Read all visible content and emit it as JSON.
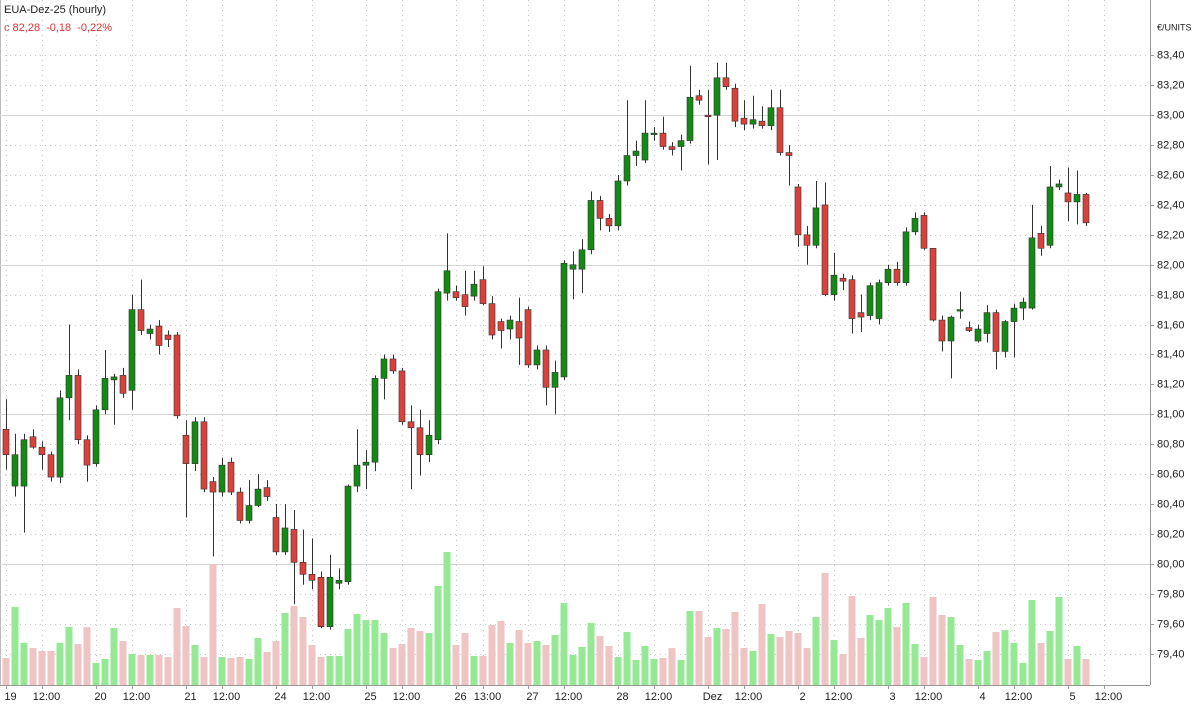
{
  "chart_data": {
    "type": "candlestick",
    "title": "EUA-Dez-25 (hourly)",
    "close_label": "c 82,28",
    "change": "-0,18",
    "change_pct": "-0,22%",
    "y_axis_label": "€/UNITS",
    "categories": [
      "19",
      null,
      null,
      null,
      "12:00",
      null,
      null,
      null,
      null,
      null,
      "20",
      null,
      null,
      null,
      "12:00",
      null,
      null,
      null,
      null,
      null,
      "21",
      null,
      null,
      null,
      "12:00",
      null,
      null,
      null,
      null,
      null,
      "24",
      null,
      null,
      null,
      "12:00",
      null,
      null,
      null,
      null,
      null,
      "25",
      null,
      null,
      null,
      "12:00",
      null,
      null,
      null,
      null,
      null,
      "26",
      null,
      null,
      "13:00",
      null,
      null,
      null,
      null,
      "27",
      null,
      null,
      null,
      "12:00",
      null,
      null,
      null,
      null,
      null,
      "28",
      null,
      null,
      null,
      "12:00",
      null,
      null,
      null,
      null,
      null,
      "Dez",
      null,
      null,
      null,
      "12:00",
      null,
      null,
      null,
      null,
      null,
      "2",
      null,
      null,
      null,
      "12:00",
      null,
      null,
      null,
      null,
      null,
      "3",
      null,
      null,
      null,
      "12:00",
      null,
      null,
      null,
      null,
      null,
      "4",
      null,
      null,
      null,
      "12:00",
      null,
      null,
      null,
      null,
      null,
      "5",
      null,
      null,
      null,
      "12:00"
    ],
    "open": [
      80.9,
      80.52,
      80.52,
      80.85,
      80.78,
      80.73,
      80.58,
      81.11,
      81.26,
      80.83,
      80.67,
      81.03,
      81.23,
      81.26,
      81.16,
      81.7,
      81.54,
      81.59,
      81.53,
      81.53,
      80.86,
      80.67,
      80.95,
      80.55,
      80.48,
      80.68,
      80.48,
      80.29,
      80.39,
      80.51,
      80.31,
      80.08,
      80.23,
      80.01,
      79.93,
      79.91,
      79.58,
      79.87,
      79.88,
      80.52,
      80.66,
      80.68,
      81.24,
      81.37,
      81.29,
      80.95,
      80.91,
      80.73,
      80.83,
      81.81,
      81.82,
      81.8,
      81.79,
      81.9,
      81.74,
      81.62,
      81.57,
      81.62,
      81.7,
      81.33,
      81.43,
      81.18,
      81.25,
      81.97,
      81.97,
      82.1,
      82.43,
      82.31,
      82.26,
      82.56,
      82.73,
      82.7,
      82.87,
      82.88,
      82.79,
      82.79,
      82.83,
      83.13,
      83.0,
      83.0,
      83.25,
      83.18,
      82.98,
      82.94,
      82.96,
      82.93,
      83.05,
      82.75,
      82.52,
      82.2,
      82.13,
      82.4,
      81.8,
      81.91,
      81.9,
      81.68,
      81.66,
      81.64,
      81.88,
      81.97,
      81.88,
      82.22,
      82.33,
      82.11,
      81.63,
      81.49,
      81.69,
      81.58,
      81.49,
      81.54,
      81.68,
      81.42,
      81.62,
      81.71,
      81.71,
      82.21,
      82.13,
      82.52,
      82.48,
      82.42,
      82.47,
      null,
      null
    ],
    "high": [
      81.1,
      80.87,
      80.87,
      80.9,
      80.82,
      80.75,
      81.16,
      81.6,
      81.3,
      80.86,
      81.06,
      81.43,
      81.27,
      81.31,
      81.8,
      81.9,
      81.6,
      81.63,
      81.56,
      81.55,
      80.96,
      80.98,
      80.98,
      80.58,
      80.71,
      80.71,
      80.51,
      80.56,
      80.6,
      80.56,
      80.4,
      80.4,
      80.36,
      80.23,
      80.17,
      79.95,
      80.06,
      79.97,
      80.53,
      80.9,
      80.76,
      81.26,
      81.4,
      81.4,
      81.31,
      81.06,
      81.03,
      80.96,
      81.84,
      82.21,
      81.86,
      81.96,
      81.96,
      81.99,
      81.79,
      81.64,
      81.66,
      81.78,
      81.72,
      81.46,
      81.46,
      81.36,
      82.03,
      82.09,
      82.17,
      82.49,
      82.46,
      82.34,
      82.6,
      83.1,
      82.83,
      83.1,
      82.92,
      82.99,
      82.82,
      82.87,
      83.33,
      83.17,
      83.17,
      83.35,
      83.35,
      83.21,
      83.1,
      83.13,
      83.06,
      83.17,
      83.17,
      82.8,
      82.54,
      82.26,
      82.56,
      82.55,
      82.08,
      81.94,
      81.93,
      81.8,
      81.88,
      81.9,
      82.0,
      82.02,
      82.25,
      82.35,
      82.35,
      82.11,
      81.66,
      81.66,
      81.82,
      81.62,
      81.6,
      81.73,
      81.7,
      81.63,
      81.74,
      81.78,
      82.4,
      82.26,
      82.66,
      82.57,
      82.65,
      82.63,
      82.48,
      null,
      null
    ],
    "low": [
      80.63,
      80.45,
      80.21,
      80.77,
      80.63,
      80.55,
      80.54,
      80.96,
      80.8,
      80.55,
      80.65,
      81.0,
      80.93,
      81.11,
      81.03,
      81.53,
      81.5,
      81.4,
      81.45,
      80.97,
      80.31,
      80.62,
      80.48,
      80.05,
      80.45,
      80.46,
      80.27,
      80.27,
      80.38,
      80.42,
      80.06,
      80.06,
      79.73,
      79.86,
      79.83,
      79.57,
      79.56,
      79.83,
      79.86,
      80.48,
      80.5,
      80.62,
      81.1,
      81.27,
      80.93,
      80.5,
      80.59,
      80.68,
      80.8,
      81.76,
      81.76,
      81.66,
      81.76,
      81.73,
      81.5,
      81.44,
      81.5,
      81.33,
      81.31,
      81.3,
      81.06,
      81.0,
      81.23,
      81.77,
      81.81,
      82.07,
      82.23,
      82.22,
      82.23,
      82.53,
      82.66,
      82.68,
      82.83,
      82.77,
      82.73,
      82.63,
      82.81,
      83.07,
      82.67,
      82.7,
      83.17,
      82.92,
      82.9,
      82.91,
      82.91,
      82.9,
      82.73,
      82.53,
      82.12,
      82.0,
      82.11,
      81.79,
      81.76,
      81.83,
      81.54,
      81.55,
      81.63,
      81.6,
      81.86,
      81.86,
      81.86,
      82.2,
      82.1,
      81.62,
      81.42,
      81.24,
      81.64,
      81.55,
      81.48,
      81.48,
      81.3,
      81.38,
      81.38,
      81.63,
      81.7,
      82.06,
      82.11,
      82.5,
      82.29,
      82.27,
      82.26,
      null,
      null
    ],
    "close": [
      80.73,
      80.73,
      80.83,
      80.78,
      80.73,
      80.58,
      81.11,
      81.26,
      80.83,
      80.66,
      81.03,
      81.24,
      81.25,
      81.14,
      81.7,
      81.56,
      81.57,
      81.46,
      81.5,
      80.99,
      80.67,
      80.95,
      80.5,
      80.48,
      80.66,
      80.48,
      80.29,
      80.39,
      80.5,
      80.45,
      80.08,
      80.24,
      80.01,
      79.93,
      79.89,
      79.58,
      79.91,
      79.89,
      80.52,
      80.66,
      80.68,
      81.24,
      81.37,
      81.29,
      80.95,
      80.91,
      80.73,
      80.86,
      81.82,
      81.96,
      81.78,
      81.72,
      81.87,
      81.74,
      81.53,
      81.56,
      81.63,
      81.51,
      81.33,
      81.43,
      81.18,
      81.28,
      82.01,
      82.0,
      82.1,
      82.43,
      82.31,
      82.26,
      82.56,
      82.73,
      82.76,
      82.88,
      82.88,
      82.79,
      82.77,
      82.83,
      83.12,
      83.1,
      82.99,
      83.25,
      83.19,
      82.96,
      82.94,
      82.97,
      82.93,
      83.05,
      82.75,
      82.73,
      82.2,
      82.13,
      82.38,
      81.8,
      81.93,
      81.89,
      81.64,
      81.65,
      81.86,
      81.88,
      81.97,
      81.88,
      82.22,
      82.31,
      82.11,
      81.63,
      81.49,
      81.65,
      81.7,
      81.56,
      81.57,
      81.68,
      81.42,
      81.62,
      81.71,
      81.75,
      82.18,
      82.11,
      82.52,
      82.54,
      82.42,
      82.47,
      82.28,
      null,
      null
    ],
    "volume": [
      27,
      78,
      42,
      37,
      34,
      34,
      42,
      58,
      41,
      58,
      22,
      26,
      57,
      44,
      31,
      30,
      30,
      30,
      28,
      77,
      59,
      40,
      28,
      121,
      28,
      27,
      28,
      26,
      47,
      33,
      44,
      72,
      79,
      68,
      40,
      28,
      29,
      29,
      56,
      71,
      65,
      65,
      52,
      37,
      41,
      57,
      54,
      52,
      99,
      133,
      40,
      52,
      29,
      29,
      60,
      64,
      42,
      55,
      42,
      44,
      40,
      50,
      82,
      30,
      38,
      62,
      49,
      39,
      28,
      53,
      25,
      39,
      26,
      27,
      37,
      25,
      74,
      74,
      48,
      57,
      56,
      73,
      37,
      34,
      81,
      51,
      48,
      54,
      52,
      37,
      68,
      112,
      45,
      31,
      89,
      47,
      70,
      65,
      77,
      58,
      82,
      41,
      28,
      88,
      70,
      68,
      40,
      26,
      25,
      34,
      53,
      55,
      42,
      22,
      85,
      42,
      54,
      88,
      26,
      39,
      26,
      null,
      null
    ],
    "up_color": "#138a13",
    "down_color": "#d8423a",
    "volume_up_color": "#95e995",
    "volume_down_color": "#efc4c4",
    "ylim": [
      79.19,
      83.77
    ],
    "yticks": [
      {
        "value": 79.4,
        "label": "79,40"
      },
      {
        "value": 79.6,
        "label": "79,60"
      },
      {
        "value": 79.8,
        "label": "79,80"
      },
      {
        "value": 80,
        "label": "80,00"
      },
      {
        "value": 80.2,
        "label": "80,20"
      },
      {
        "value": 80.4,
        "label": "80,40"
      },
      {
        "value": 80.6,
        "label": "80,60"
      },
      {
        "value": 80.8,
        "label": "80,80"
      },
      {
        "value": 81,
        "label": "81,00"
      },
      {
        "value": 81.2,
        "label": "81,20"
      },
      {
        "value": 81.4,
        "label": "81,40"
      },
      {
        "value": 81.6,
        "label": "81,60"
      },
      {
        "value": 81.8,
        "label": "81,80"
      },
      {
        "value": 82,
        "label": "82,00"
      },
      {
        "value": 82.2,
        "label": "82,20"
      },
      {
        "value": 82.4,
        "label": "82,40"
      },
      {
        "value": 82.6,
        "label": "82,60"
      },
      {
        "value": 82.8,
        "label": "82,80"
      },
      {
        "value": 83,
        "label": "83,00"
      },
      {
        "value": 83.2,
        "label": "83,20"
      },
      {
        "value": 83.4,
        "label": "83,40"
      }
    ],
    "grid": true
  }
}
